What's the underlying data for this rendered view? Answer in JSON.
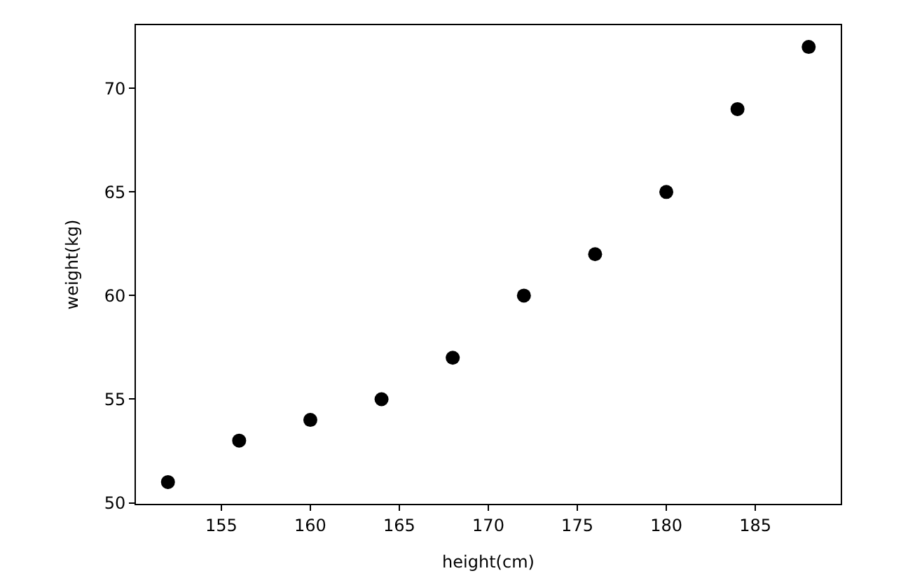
{
  "chart_data": {
    "type": "scatter",
    "xlabel": "height(cm)",
    "ylabel": "weight(kg)",
    "x": [
      152,
      156,
      160,
      164,
      168,
      172,
      176,
      180,
      184,
      188
    ],
    "series": [
      {
        "color": "#000000",
        "values": [
          51,
          53,
          54,
          55,
          57,
          60,
          62,
          65,
          69,
          72
        ]
      }
    ],
    "xlim": [
      150.2,
      189.8
    ],
    "xticks": [
      155,
      160,
      165,
      170,
      175,
      180,
      185
    ],
    "ylim": [
      49.95,
      73.05
    ],
    "yticks": [
      50,
      55,
      60,
      65,
      70
    ],
    "marker": "circle"
  }
}
